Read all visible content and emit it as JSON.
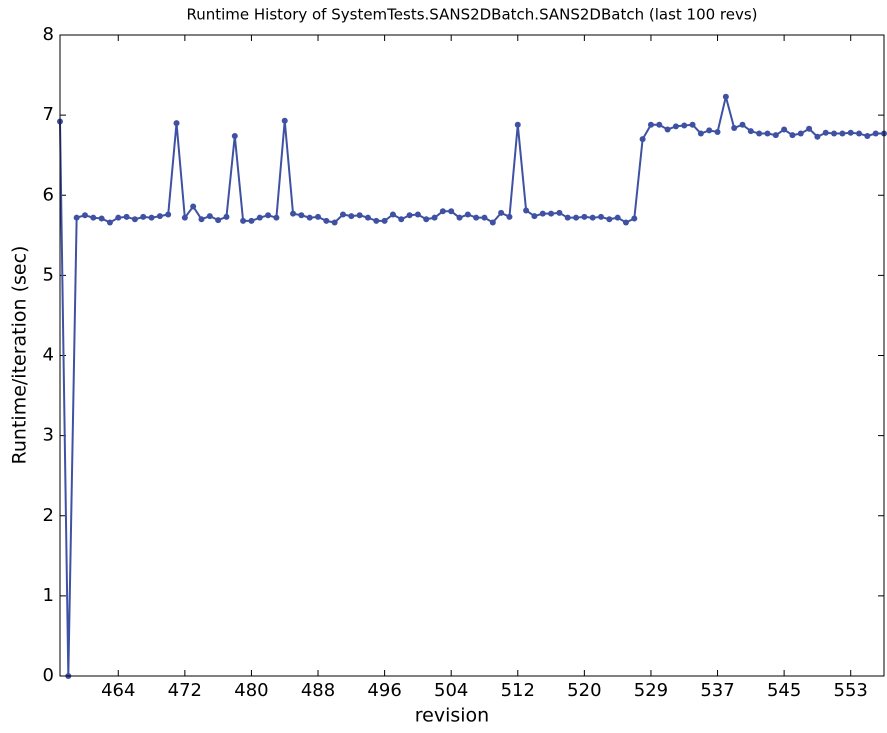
{
  "chart_data": {
    "type": "line",
    "title": "Runtime History of SystemTests.SANS2DBatch.SANS2DBatch (last 100 revs)",
    "xlabel": "revision",
    "ylabel": "Runtime/iteration (sec)",
    "x": [
      0,
      1,
      2,
      3,
      4,
      5,
      6,
      7,
      8,
      9,
      10,
      11,
      12,
      13,
      14,
      15,
      16,
      17,
      18,
      19,
      20,
      21,
      22,
      23,
      24,
      25,
      26,
      27,
      28,
      29,
      30,
      31,
      32,
      33,
      34,
      35,
      36,
      37,
      38,
      39,
      40,
      41,
      42,
      43,
      44,
      45,
      46,
      47,
      48,
      49,
      50,
      51,
      52,
      53,
      54,
      55,
      56,
      57,
      58,
      59,
      60,
      61,
      62,
      63,
      64,
      65,
      66,
      67,
      68,
      69,
      70,
      71,
      72,
      73,
      74,
      75,
      76,
      77,
      78,
      79,
      80,
      81,
      82,
      83,
      84,
      85,
      86,
      87,
      88,
      89,
      90,
      91,
      92,
      93,
      94,
      95,
      96,
      97,
      98,
      99
    ],
    "series": [
      {
        "name": "runtime",
        "color": "#3f51a3",
        "values": [
          6.92,
          0,
          5.72,
          5.75,
          5.72,
          5.71,
          5.66,
          5.72,
          5.73,
          5.7,
          5.73,
          5.72,
          5.74,
          5.76,
          6.9,
          5.72,
          5.86,
          5.7,
          5.74,
          5.69,
          5.73,
          6.74,
          5.68,
          5.68,
          5.72,
          5.75,
          5.72,
          6.93,
          5.77,
          5.75,
          5.72,
          5.73,
          5.68,
          5.66,
          5.76,
          5.74,
          5.75,
          5.72,
          5.68,
          5.68,
          5.76,
          5.7,
          5.75,
          5.76,
          5.7,
          5.72,
          5.8,
          5.8,
          5.72,
          5.76,
          5.72,
          5.72,
          5.66,
          5.78,
          5.73,
          6.88,
          5.81,
          5.74,
          5.77,
          5.77,
          5.78,
          5.72,
          5.72,
          5.73,
          5.72,
          5.73,
          5.7,
          5.72,
          5.66,
          5.71,
          6.7,
          6.88,
          6.88,
          6.82,
          6.86,
          6.87,
          6.88,
          6.77,
          6.81,
          6.79,
          7.23,
          6.84,
          6.88,
          6.8,
          6.77,
          6.77,
          6.75,
          6.82,
          6.75,
          6.77,
          6.83,
          6.73,
          6.78,
          6.77,
          6.77,
          6.78,
          6.77,
          6.74,
          6.77,
          6.77
        ]
      }
    ],
    "xlim": [
      0,
      99
    ],
    "xticks": [
      {
        "value": 7,
        "label": "464"
      },
      {
        "value": 15,
        "label": "472"
      },
      {
        "value": 23,
        "label": "480"
      },
      {
        "value": 31,
        "label": "488"
      },
      {
        "value": 39,
        "label": "496"
      },
      {
        "value": 47,
        "label": "504"
      },
      {
        "value": 55,
        "label": "512"
      },
      {
        "value": 63,
        "label": "520"
      },
      {
        "value": 71,
        "label": "529"
      },
      {
        "value": 79,
        "label": "537"
      },
      {
        "value": 87,
        "label": "545"
      },
      {
        "value": 95,
        "label": "553"
      }
    ],
    "ylim": [
      0,
      8
    ],
    "yticks": [
      0,
      1,
      2,
      3,
      4,
      5,
      6,
      7,
      8
    ],
    "grid": false
  }
}
